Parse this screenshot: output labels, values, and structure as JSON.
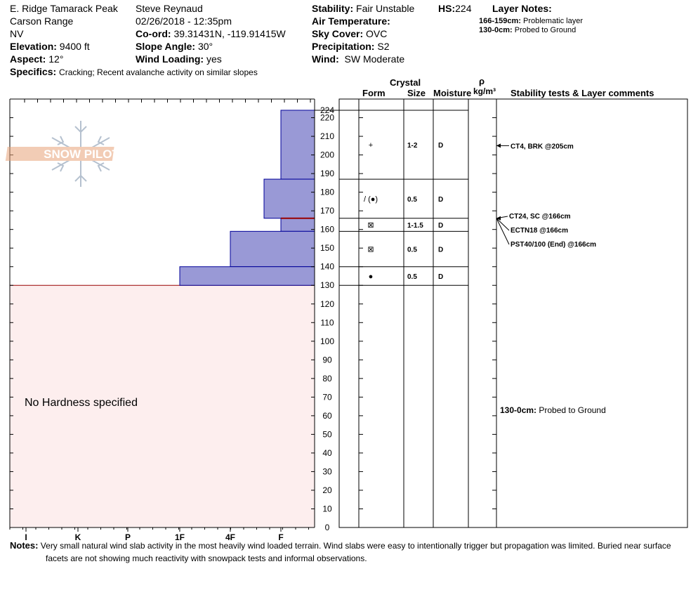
{
  "header": {
    "location": "E. Ridge Tamarack Peak",
    "range": "Carson Range",
    "state": "NV",
    "elevation_label": "Elevation:",
    "elevation": "9400 ft",
    "aspect_label": "Aspect:",
    "aspect": "12°",
    "observer": "Steve Reynaud",
    "datetime": "02/26/2018 - 12:35pm",
    "coord_label": "Co-ord:",
    "coord": "39.31431N, -119.91415W",
    "slope_label": "Slope Angle:",
    "slope": "30°",
    "wind_loading_label": "Wind Loading:",
    "wind_loading": "yes",
    "stability_label": "Stability:",
    "stability": "Fair Unstable",
    "hs_label": "HS:",
    "hs": "224",
    "air_temp_label": "Air Temperature:",
    "air_temp": "",
    "sky_label": "Sky Cover:",
    "sky": "OVC",
    "precip_label": "Precipitation:",
    "precip": "S2",
    "wind_label": "Wind:",
    "wind": "SW Moderate",
    "specifics_label": "Specifics:",
    "specifics": "Cracking; Recent avalanche activity on similar slopes",
    "layer_notes_title": "Layer Notes:",
    "layer_notes": [
      {
        "range": "166-159cm:",
        "text": "Problematic layer"
      },
      {
        "range": "130-0cm:",
        "text": "Probed to Ground"
      }
    ]
  },
  "columns": {
    "crystal": "Crystal",
    "form": "Form",
    "size": "Size",
    "moisture": "Moisture",
    "rho": "ρ",
    "density_unit": "kg/m³",
    "stability_comments": "Stability tests & Layer comments"
  },
  "logo_text": "SNOW PILOT",
  "no_hardness": "No Hardness specified",
  "notes_label": "Notes:",
  "notes_line1": "Very small natural wind slab activity in the most heavily wind loaded terrain.  Wind slabs were easy to intentionally trigger but propagation was limited.  Buried near surface",
  "notes_line2": "facets are not showing much reactivity with snowpack tests and informal observations.",
  "colors": {
    "layer_fill": "#9999d6",
    "layer_stroke": "#000099",
    "unspecified_fill": "#fdeeee",
    "unspecified_line": "#990000",
    "problem_line": "#990000"
  },
  "chart_data": {
    "type": "bar",
    "title": "",
    "ylabel": "",
    "ylim": [
      0,
      224
    ],
    "y_ticks": [
      0,
      10,
      20,
      30,
      40,
      50,
      60,
      70,
      80,
      90,
      100,
      110,
      120,
      130,
      140,
      150,
      160,
      170,
      180,
      190,
      200,
      210,
      220
    ],
    "top_label": "224",
    "hardness_scale": [
      "I",
      "K",
      "P",
      "1F",
      "4F",
      "F"
    ],
    "layers": [
      {
        "top": 224,
        "bottom": 187,
        "hardness": "F",
        "form": "+",
        "size": "1-2",
        "moisture": "D"
      },
      {
        "top": 187,
        "bottom": 166,
        "hardness": "F+",
        "form": "/ (●)",
        "size": "0.5",
        "moisture": "D"
      },
      {
        "top": 166,
        "bottom": 159,
        "hardness": "F",
        "form": "⊠",
        "size": "1-1.5",
        "moisture": "D"
      },
      {
        "top": 159,
        "bottom": 140,
        "hardness": "4F",
        "form": "⊠",
        "size": "0.5",
        "moisture": "D"
      },
      {
        "top": 140,
        "bottom": 130,
        "hardness": "1F",
        "form": "●",
        "size": "0.5",
        "moisture": "D"
      }
    ],
    "unspecified_below": 130,
    "problem_layer_cm": 166,
    "stability_tests": [
      {
        "depth": 205,
        "text": "CT4, BRK @205cm"
      },
      {
        "depth": 166,
        "text": "CT24, SC @166cm"
      },
      {
        "depth": 166,
        "text": "ECTN18 @166cm"
      },
      {
        "depth": 166,
        "text": "PST40/100 (End) @166cm"
      }
    ],
    "layer_comment": {
      "range": "130-0cm:",
      "text": "Probed to Ground"
    }
  }
}
